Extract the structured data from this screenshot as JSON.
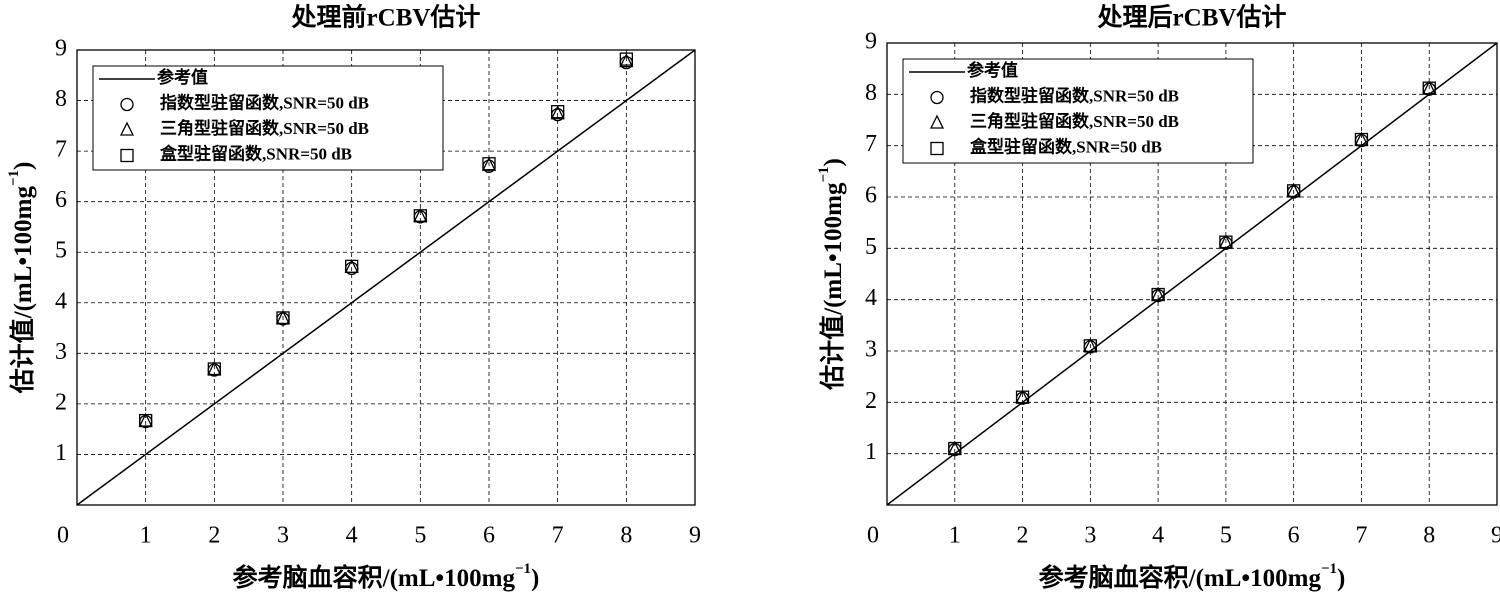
{
  "chart_data": [
    {
      "type": "scatter",
      "title": "处理前rCBV估计",
      "xlabel": {
        "text": "参考脑血容积/(mL•100mg",
        "superscript": "−1",
        "suffix": ")"
      },
      "ylabel": {
        "text": "估计值/(mL•100mg",
        "superscript": "−1",
        "suffix": ")"
      },
      "xlim": [
        0,
        9
      ],
      "ylim": [
        0,
        9
      ],
      "xticks": [
        0,
        1,
        2,
        3,
        4,
        5,
        6,
        7,
        8,
        9
      ],
      "yticks": [
        1,
        2,
        3,
        4,
        5,
        6,
        7,
        8,
        9
      ],
      "grid": true,
      "legend": "upper left",
      "series": [
        {
          "name": "参考值",
          "kind": "line",
          "color": "#000000",
          "x": [
            0,
            9
          ],
          "values": [
            0,
            9
          ]
        },
        {
          "name": "指数型驻留函数,SNR=50 dB",
          "marker": "circle",
          "color": "#000000",
          "x": [
            1,
            2,
            3,
            4,
            5,
            6,
            7,
            8
          ],
          "values": [
            1.65,
            2.67,
            3.68,
            4.68,
            5.7,
            6.7,
            7.72,
            8.75
          ]
        },
        {
          "name": "三角型驻留函数,SNR=50 dB",
          "marker": "triangle",
          "color": "#000000",
          "x": [
            1,
            2,
            3,
            4,
            5,
            6,
            7,
            8
          ],
          "values": [
            1.66,
            2.68,
            3.69,
            4.7,
            5.71,
            6.72,
            7.74,
            8.77
          ]
        },
        {
          "name": "盒型驻留函数,SNR=50 dB",
          "marker": "square",
          "color": "#000000",
          "x": [
            1,
            2,
            3,
            4,
            5,
            6,
            7,
            8
          ],
          "values": [
            1.67,
            2.69,
            3.7,
            4.72,
            5.72,
            6.75,
            7.78,
            8.82
          ]
        }
      ]
    },
    {
      "type": "scatter",
      "title": "处理后rCBV估计",
      "xlabel": {
        "text": "参考脑血容积/(mL•100mg",
        "superscript": "−1",
        "suffix": ")"
      },
      "ylabel": {
        "text": "估计值/(mL•100mg",
        "superscript": "−1",
        "suffix": ")"
      },
      "xlim": [
        0,
        9
      ],
      "ylim": [
        0,
        9
      ],
      "xticks": [
        0,
        1,
        2,
        3,
        4,
        5,
        6,
        7,
        8,
        9
      ],
      "yticks": [
        1,
        2,
        3,
        4,
        5,
        6,
        7,
        8,
        9
      ],
      "grid": true,
      "legend": "upper left",
      "series": [
        {
          "name": "参考值",
          "kind": "line",
          "color": "#000000",
          "x": [
            0,
            9
          ],
          "values": [
            0,
            9
          ]
        },
        {
          "name": "指数型驻留函数,SNR=50 dB",
          "marker": "circle",
          "color": "#000000",
          "x": [
            1,
            2,
            3,
            4,
            5,
            6,
            7,
            8
          ],
          "values": [
            1.08,
            2.08,
            3.08,
            4.08,
            5.1,
            6.1,
            7.1,
            8.1
          ]
        },
        {
          "name": "三角型驻留函数,SNR=50 dB",
          "marker": "triangle",
          "color": "#000000",
          "x": [
            1,
            2,
            3,
            4,
            5,
            6,
            7,
            8
          ],
          "values": [
            1.09,
            2.09,
            3.09,
            4.09,
            5.11,
            6.11,
            7.11,
            8.11
          ]
        },
        {
          "name": "盒型驻留函数,SNR=50 dB",
          "marker": "square",
          "color": "#000000",
          "x": [
            1,
            2,
            3,
            4,
            5,
            6,
            7,
            8
          ],
          "values": [
            1.1,
            2.1,
            3.1,
            4.1,
            5.12,
            6.12,
            7.12,
            8.12
          ]
        }
      ]
    }
  ]
}
